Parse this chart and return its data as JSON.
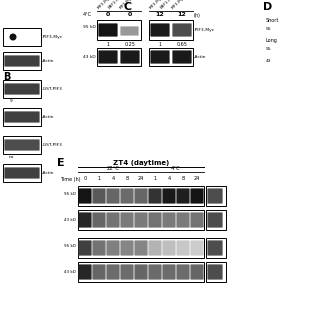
{
  "bg_color": "#ffffff",
  "panel_C": {
    "label": "C",
    "col_labels": [
      "PIF3-Myc",
      "EBF1-TAP",
      "PIF3-Myc",
      "PIF3-Myc",
      "EBF1-TAP",
      "PIF3-Myc"
    ],
    "temp_label": "4°C",
    "time_labels": [
      "0",
      "0",
      "12",
      "12"
    ],
    "time_label_suffix": "(h)",
    "band1_label": "PIF3-Myc",
    "band1_kd": "95 kD",
    "band2_label": "Actin",
    "band2_kd": "43 kD",
    "quant_values": [
      "1",
      "0.25",
      "1",
      "0.65"
    ]
  },
  "panel_D": {
    "label": "D",
    "short_label": "Short",
    "long_label": "Long",
    "kd_55": "55",
    "kd_43": "43"
  },
  "panel_E": {
    "label": "E",
    "title": "ZT4 (daytime)",
    "temp1": "22°C",
    "temp2": "4°C",
    "time_label": "Time (h)",
    "time_points_22": [
      "0",
      "1",
      "4",
      "8",
      "24"
    ],
    "time_points_4": [
      "1",
      "4",
      "8",
      "24"
    ],
    "kd_labels": [
      "95 kD",
      "43 kD",
      "95 kD",
      "43 kD"
    ]
  },
  "left_panel": {
    "band1_label": "-PIF3-Myc",
    "band2_label": "-Actin",
    "band3_label": "-GST-PIF3",
    "band4_label": "-Actin",
    "band5_label": "-GST-PIF3",
    "band6_label": "-Actin",
    "num1": "9",
    "num2": "no"
  }
}
